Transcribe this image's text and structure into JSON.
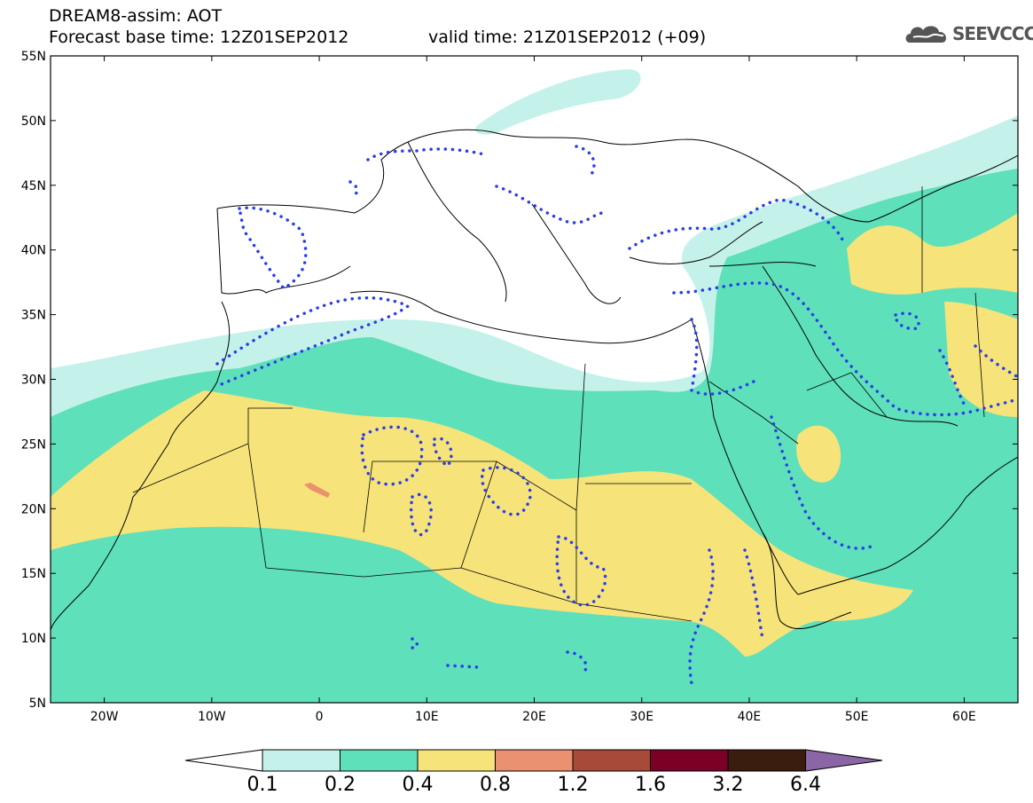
{
  "header": {
    "line1": "DREAM8-assim: AOT",
    "line2_base": "Forecast base time: 12Z01SEP2012",
    "line2_valid": "valid time: 21Z01SEP2012 (+09)"
  },
  "logo": {
    "text": "SEEVCCC",
    "icon": "cloud-logo-icon"
  },
  "map": {
    "lon_range": [
      -25,
      65
    ],
    "lat_range": [
      5,
      55
    ],
    "lat_ticks": [
      {
        "value": 55,
        "label": "55N"
      },
      {
        "value": 50,
        "label": "50N"
      },
      {
        "value": 45,
        "label": "45N"
      },
      {
        "value": 40,
        "label": "40N"
      },
      {
        "value": 35,
        "label": "35N"
      },
      {
        "value": 30,
        "label": "30N"
      },
      {
        "value": 25,
        "label": "25N"
      },
      {
        "value": 20,
        "label": "20N"
      },
      {
        "value": 15,
        "label": "15N"
      },
      {
        "value": 10,
        "label": "10N"
      },
      {
        "value": 5,
        "label": "5N"
      }
    ],
    "lon_ticks": [
      {
        "value": -20,
        "label": "20W"
      },
      {
        "value": -10,
        "label": "10W"
      },
      {
        "value": 0,
        "label": "0"
      },
      {
        "value": 10,
        "label": "10E"
      },
      {
        "value": 20,
        "label": "20E"
      },
      {
        "value": 30,
        "label": "30E"
      },
      {
        "value": 40,
        "label": "40E"
      },
      {
        "value": 50,
        "label": "50E"
      },
      {
        "value": 60,
        "label": "60E"
      }
    ]
  },
  "colorbar": {
    "labels": [
      "0.1",
      "0.2",
      "0.4",
      "0.8",
      "1.2",
      "1.6",
      "3.2",
      "6.4"
    ],
    "colors": [
      "#ffffff",
      "#c4f2ea",
      "#5ee0ba",
      "#f6e37a",
      "#ea9170",
      "#a84a3a",
      "#7a0026",
      "#3b1d10",
      "#8a66a6"
    ]
  }
}
